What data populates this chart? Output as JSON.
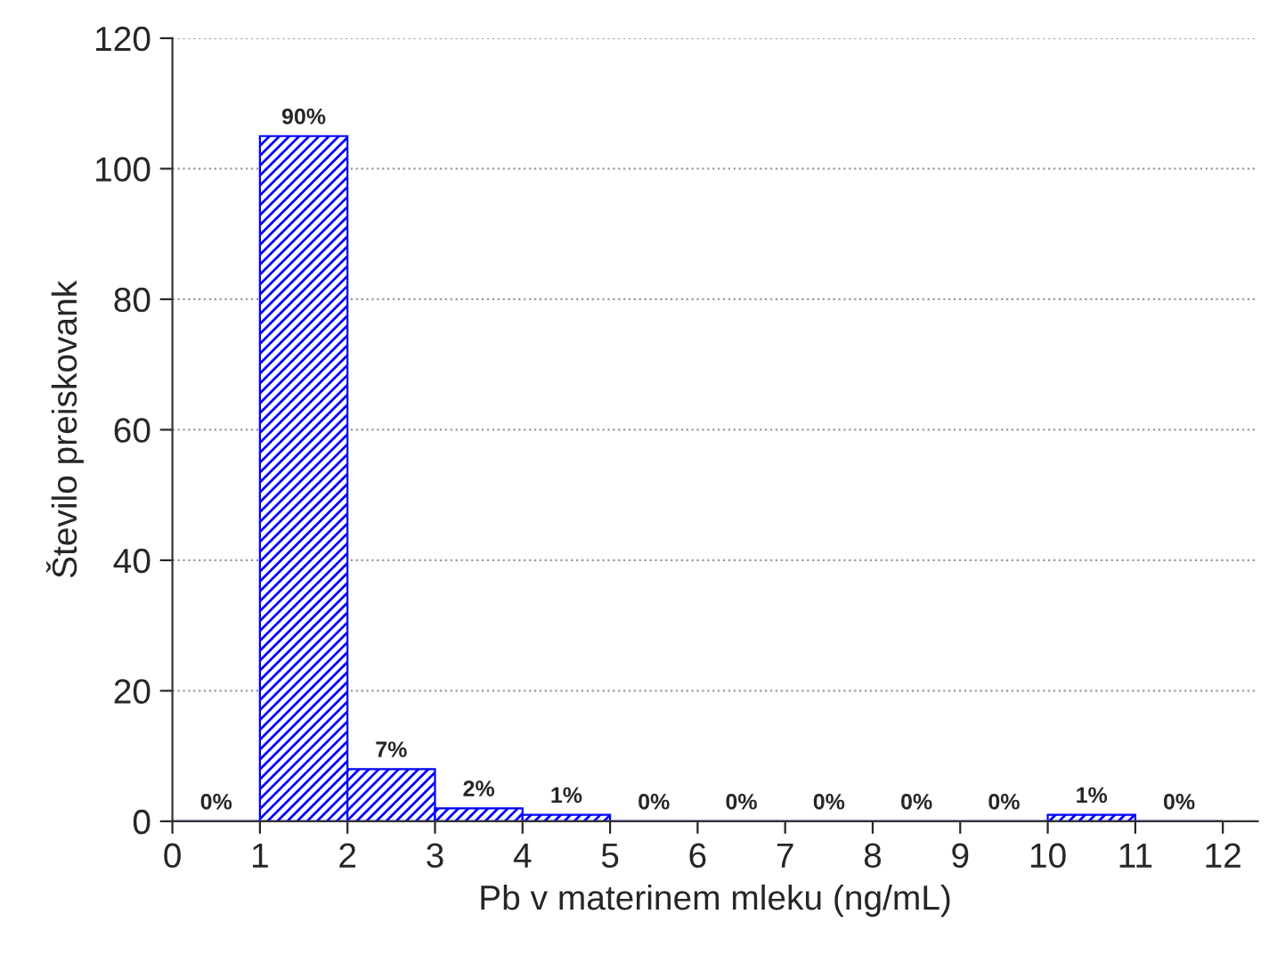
{
  "chart_data": {
    "type": "histogram",
    "xlabel": "Pb v materinem mleku (ng/mL)",
    "ylabel": "Število preiskovank",
    "bins": [
      0,
      1,
      2,
      3,
      4,
      5,
      6,
      7,
      8,
      9,
      10,
      11,
      12
    ],
    "values": [
      0,
      105,
      8,
      2,
      1,
      0,
      0,
      0,
      0,
      0,
      1,
      0
    ],
    "annotations": [
      {
        "text": "0%",
        "x": 0.5,
        "y": 0
      },
      {
        "text": "90%",
        "x": 1.5,
        "y": 105
      },
      {
        "text": "7%",
        "x": 2.5,
        "y": 8
      },
      {
        "text": "2%",
        "x": 3.5,
        "y": 2
      },
      {
        "text": "1%",
        "x": 4.5,
        "y": 1
      },
      {
        "text": "0%",
        "x": 5.5,
        "y": 0
      },
      {
        "text": "0%",
        "x": 6.5,
        "y": 0
      },
      {
        "text": "0%",
        "x": 7.5,
        "y": 0
      },
      {
        "text": "0%",
        "x": 8.5,
        "y": 0
      },
      {
        "text": "0%",
        "x": 9.5,
        "y": 0
      },
      {
        "text": "1%",
        "x": 10.5,
        "y": 1
      },
      {
        "text": "0%",
        "x": 11.5,
        "y": 0
      }
    ],
    "color": "#0000ff",
    "xlim": [
      0,
      12.4
    ],
    "xticks": [
      0,
      1,
      2,
      3,
      4,
      5,
      6,
      7,
      8,
      9,
      10,
      11,
      12
    ],
    "ylim": [
      0,
      120
    ],
    "yticks": [
      0,
      20,
      40,
      60,
      80,
      100,
      120
    ],
    "grid": "y"
  }
}
